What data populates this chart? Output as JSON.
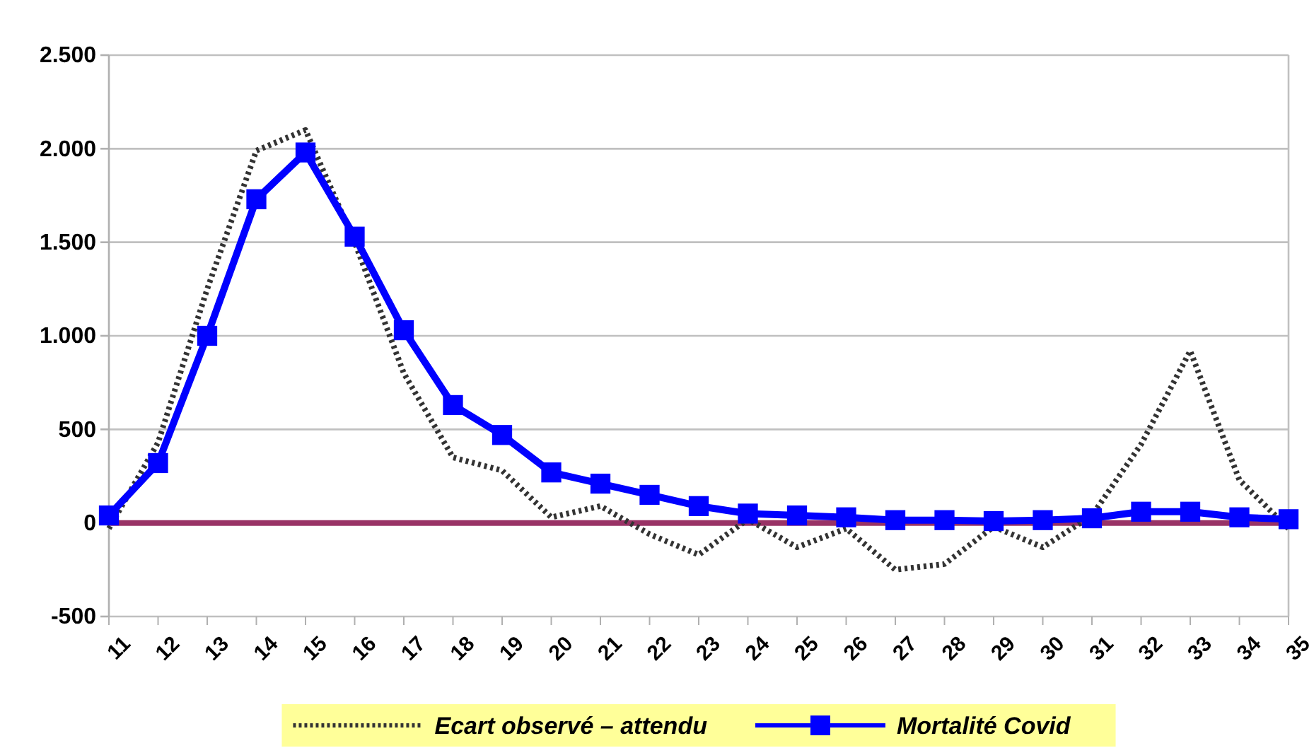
{
  "chart_data": {
    "type": "line",
    "categories": [
      "11",
      "12",
      "13",
      "14",
      "15",
      "16",
      "17",
      "18",
      "19",
      "20",
      "21",
      "22",
      "23",
      "24",
      "25",
      "26",
      "27",
      "28",
      "29",
      "30",
      "31",
      "32",
      "33",
      "34",
      "35"
    ],
    "series": [
      {
        "name": "Ecart observé – attendu",
        "color": "#333333",
        "line_style": "dotted",
        "marker": "none",
        "values": [
          -30,
          430,
          1250,
          1990,
          2100,
          1500,
          800,
          350,
          280,
          30,
          90,
          -60,
          -170,
          20,
          -130,
          -30,
          -250,
          -220,
          -20,
          -130,
          40,
          420,
          920,
          230,
          -30
        ]
      },
      {
        "name": "Mortalité Covid",
        "color": "#0000ff",
        "line_style": "solid",
        "marker": "square",
        "values": [
          40,
          320,
          1000,
          1730,
          1980,
          1530,
          1030,
          630,
          470,
          270,
          210,
          150,
          90,
          50,
          40,
          30,
          15,
          15,
          10,
          15,
          25,
          60,
          60,
          30,
          20
        ]
      }
    ],
    "ylim": [
      -500,
      2500
    ],
    "yticks": [
      {
        "value": -500,
        "label": "-500"
      },
      {
        "value": 0,
        "label": "0"
      },
      {
        "value": 500,
        "label": "500"
      },
      {
        "value": 1000,
        "label": "1.000"
      },
      {
        "value": 1500,
        "label": "1.500"
      },
      {
        "value": 2000,
        "label": "2.000"
      },
      {
        "value": 2500,
        "label": "2.500"
      }
    ],
    "ref_lines": [
      {
        "axis": "y",
        "value": 0,
        "color": "#993366"
      }
    ],
    "grid": "y",
    "legend": "bottom"
  }
}
